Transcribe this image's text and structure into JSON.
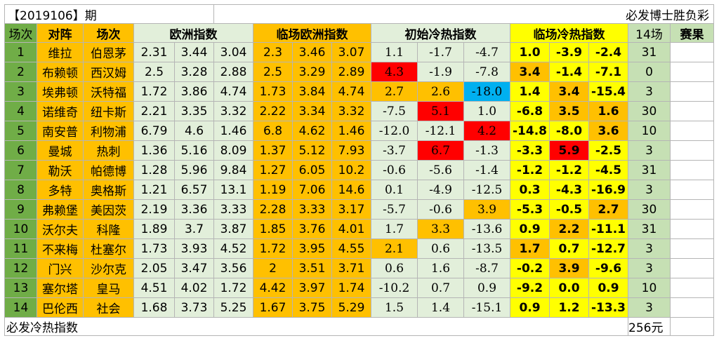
{
  "title": {
    "period": "【2019106】期",
    "brand": "必发博士胜负彩"
  },
  "header": {
    "index": "场次",
    "matchup": "对阵",
    "order": "场次",
    "euro": "欧洲指数",
    "closing_euro": "临场欧洲指数",
    "initial_coldhot": "初始冷热指数",
    "closing_coldhot": "临场冷热指数",
    "fourteen": "14场",
    "result": "赛果"
  },
  "colors": {
    "red": "#ff0000",
    "orange": "#ffc000",
    "blue": "#00b0f0",
    "yellow": "#ffff00",
    "green": "#70ad47",
    "light_green": "#e2efda"
  },
  "rows": [
    {
      "idx": "1",
      "home": "维拉",
      "away": "伯恩茅",
      "eu": [
        "2.31",
        "3.44",
        "3.04"
      ],
      "lin": [
        "2.3",
        "3.46",
        "3.07"
      ],
      "init": [
        "1.1",
        "-1.7",
        "-4.7"
      ],
      "init_hl": [
        "",
        "",
        ""
      ],
      "hot": [
        "1.0",
        "-3.9",
        "-2.4"
      ],
      "hot_hl": [
        "",
        "",
        ""
      ],
      "f14": "31",
      "result": ""
    },
    {
      "idx": "2",
      "home": "布赖顿",
      "away": "西汉姆",
      "eu": [
        "2.5",
        "3.28",
        "2.88"
      ],
      "lin": [
        "2.5",
        "3.29",
        "2.89"
      ],
      "init": [
        "4.3",
        "-1.9",
        "-7.8"
      ],
      "init_hl": [
        "red",
        "",
        ""
      ],
      "hot": [
        "3.4",
        "-1.4",
        "-7.1"
      ],
      "hot_hl": [
        "orange",
        "",
        ""
      ],
      "f14": "0",
      "result": ""
    },
    {
      "idx": "3",
      "home": "埃弗顿",
      "away": "沃特福",
      "eu": [
        "1.72",
        "3.86",
        "4.74"
      ],
      "lin": [
        "1.73",
        "3.84",
        "4.74"
      ],
      "init": [
        "2.7",
        "2.6",
        "-18.0"
      ],
      "init_hl": [
        "orange",
        "orange",
        "blue"
      ],
      "hot": [
        "1.4",
        "3.4",
        "-15.4"
      ],
      "hot_hl": [
        "",
        "orange",
        ""
      ],
      "f14": "3",
      "result": ""
    },
    {
      "idx": "4",
      "home": "诺维奇",
      "away": "纽卡斯",
      "eu": [
        "2.21",
        "3.35",
        "3.32"
      ],
      "lin": [
        "2.22",
        "3.34",
        "3.32"
      ],
      "init": [
        "-7.5",
        "5.1",
        "1.0"
      ],
      "init_hl": [
        "",
        "red",
        ""
      ],
      "hot": [
        "-6.8",
        "3.5",
        "1.6"
      ],
      "hot_hl": [
        "",
        "orange",
        "orange"
      ],
      "f14": "30",
      "result": ""
    },
    {
      "idx": "5",
      "home": "南安普",
      "away": "利物浦",
      "eu": [
        "6.79",
        "4.6",
        "1.46"
      ],
      "lin": [
        "6.8",
        "4.62",
        "1.46"
      ],
      "init": [
        "-12.0",
        "-12.1",
        "4.2"
      ],
      "init_hl": [
        "",
        "",
        "red"
      ],
      "hot": [
        "-14.8",
        "-8.0",
        "3.6"
      ],
      "hot_hl": [
        "",
        "",
        "orange"
      ],
      "f14": "10",
      "result": ""
    },
    {
      "idx": "6",
      "home": "曼城",
      "away": "热刺",
      "eu": [
        "1.36",
        "5.16",
        "8.09"
      ],
      "lin": [
        "1.37",
        "5.12",
        "7.93"
      ],
      "init": [
        "-3.7",
        "6.7",
        "-1.3"
      ],
      "init_hl": [
        "",
        "red",
        ""
      ],
      "hot": [
        "-3.3",
        "5.9",
        "-2.5"
      ],
      "hot_hl": [
        "",
        "red",
        ""
      ],
      "f14": "3",
      "result": ""
    },
    {
      "idx": "7",
      "home": "勒沃",
      "away": "帕德博",
      "eu": [
        "1.28",
        "5.96",
        "9.84"
      ],
      "lin": [
        "1.27",
        "6.05",
        "10.2"
      ],
      "init": [
        "-0.6",
        "-5.6",
        "-1.4"
      ],
      "init_hl": [
        "",
        "",
        ""
      ],
      "hot": [
        "-1.2",
        "-1.2",
        "-4.5"
      ],
      "hot_hl": [
        "",
        "",
        ""
      ],
      "f14": "31",
      "result": ""
    },
    {
      "idx": "8",
      "home": "多特",
      "away": "奥格斯",
      "eu": [
        "1.21",
        "6.57",
        "13.1"
      ],
      "lin": [
        "1.19",
        "7.06",
        "14.6"
      ],
      "init": [
        "0.1",
        "-4.9",
        "-12.5"
      ],
      "init_hl": [
        "",
        "",
        ""
      ],
      "hot": [
        "0.3",
        "-4.3",
        "-16.9"
      ],
      "hot_hl": [
        "",
        "",
        ""
      ],
      "f14": "3",
      "result": ""
    },
    {
      "idx": "9",
      "home": "弗赖堡",
      "away": "美因茨",
      "eu": [
        "2.19",
        "3.36",
        "3.33"
      ],
      "lin": [
        "2.28",
        "3.33",
        "3.17"
      ],
      "init": [
        "-5.7",
        "-0.6",
        "3.9"
      ],
      "init_hl": [
        "",
        "",
        "orange"
      ],
      "hot": [
        "-5.3",
        "-0.5",
        "2.7"
      ],
      "hot_hl": [
        "",
        "",
        "orange"
      ],
      "f14": "30",
      "result": ""
    },
    {
      "idx": "10",
      "home": "沃尔夫",
      "away": "科隆",
      "eu": [
        "1.89",
        "3.7",
        "3.87"
      ],
      "lin": [
        "1.85",
        "3.76",
        "4.01"
      ],
      "init": [
        "1.7",
        "3.3",
        "-13.6"
      ],
      "init_hl": [
        "",
        "orange",
        ""
      ],
      "hot": [
        "0.9",
        "2.2",
        "-11.1"
      ],
      "hot_hl": [
        "",
        "orange",
        ""
      ],
      "f14": "31",
      "result": ""
    },
    {
      "idx": "11",
      "home": "不来梅",
      "away": "杜塞尔",
      "eu": [
        "1.73",
        "3.93",
        "4.52"
      ],
      "lin": [
        "1.72",
        "3.95",
        "4.55"
      ],
      "init": [
        "2.1",
        "0.6",
        "-13.5"
      ],
      "init_hl": [
        "orange",
        "",
        ""
      ],
      "hot": [
        "1.7",
        "0.7",
        "-12.7"
      ],
      "hot_hl": [
        "orange",
        "",
        ""
      ],
      "f14": "3",
      "result": ""
    },
    {
      "idx": "12",
      "home": "门兴",
      "away": "沙尔克",
      "eu": [
        "2.05",
        "3.47",
        "3.56"
      ],
      "lin": [
        "2",
        "3.51",
        "3.71"
      ],
      "init": [
        "0.6",
        "1.6",
        "-8.7"
      ],
      "init_hl": [
        "",
        "",
        ""
      ],
      "hot": [
        "-0.2",
        "3.9",
        "-9.6"
      ],
      "hot_hl": [
        "",
        "orange",
        ""
      ],
      "f14": "3",
      "result": ""
    },
    {
      "idx": "13",
      "home": "塞尔塔",
      "away": "皇马",
      "eu": [
        "4.51",
        "4.02",
        "1.72"
      ],
      "lin": [
        "4.42",
        "3.97",
        "1.74"
      ],
      "init": [
        "-10.2",
        "0.7",
        "0.9"
      ],
      "init_hl": [
        "",
        "",
        ""
      ],
      "hot": [
        "-9.2",
        "0.0",
        "0.9"
      ],
      "hot_hl": [
        "",
        "",
        ""
      ],
      "f14": "10",
      "result": ""
    },
    {
      "idx": "14",
      "home": "巴伦西",
      "away": "社会",
      "eu": [
        "1.68",
        "3.73",
        "5.25"
      ],
      "lin": [
        "1.67",
        "3.75",
        "5.29"
      ],
      "init": [
        "1.5",
        "1.4",
        "-15.1"
      ],
      "init_hl": [
        "",
        "",
        ""
      ],
      "hot": [
        "0.9",
        "1.2",
        "-13.3"
      ],
      "hot_hl": [
        "",
        "",
        ""
      ],
      "f14": "3",
      "result": ""
    }
  ],
  "footer": {
    "label": "必发冷热指数",
    "price": "256元"
  }
}
